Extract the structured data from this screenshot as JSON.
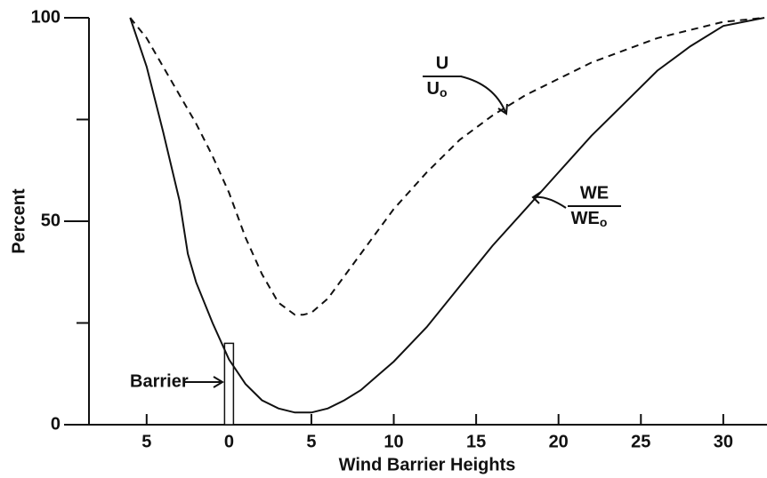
{
  "chart_data": {
    "type": "line",
    "xlabel": "Wind Barrier Heights",
    "ylabel": "Percent",
    "xlim": [
      -8.5,
      32.6
    ],
    "ylim": [
      0,
      100
    ],
    "xticks": [
      {
        "value": -5,
        "label": "5"
      },
      0,
      5,
      10,
      15,
      20,
      25,
      30
    ],
    "yticks": [
      0,
      50,
      100
    ],
    "yminor_ticks": [
      25,
      75
    ],
    "series": [
      {
        "label": {
          "numerator": "U",
          "denominator": "U",
          "subscript": "o"
        },
        "color": "#111",
        "dash": true,
        "x": [
          -6,
          -5,
          -4,
          -3,
          -2,
          -1,
          0,
          1,
          2,
          3,
          4,
          4.5,
          5,
          6,
          8,
          10,
          12,
          14,
          16,
          18,
          20,
          22,
          24,
          26,
          28,
          30,
          32.5
        ],
        "values": [
          100,
          95,
          88,
          81,
          74,
          66,
          57,
          46,
          37,
          30,
          27,
          27,
          27.5,
          31,
          42,
          53,
          62,
          70,
          76,
          81,
          85,
          89,
          92,
          95,
          97,
          99,
          100
        ]
      },
      {
        "label": {
          "numerator": "WE",
          "denominator": "WE",
          "subscript": "o"
        },
        "color": "#111",
        "dash": false,
        "x": [
          -6,
          -5,
          -4,
          -3,
          -2.5,
          -2,
          -1,
          0,
          1,
          2,
          3,
          4,
          5,
          6,
          7,
          8,
          9,
          10,
          12,
          14,
          16,
          18,
          20,
          22,
          24,
          26,
          28,
          30,
          32.5
        ],
        "values": [
          100,
          88,
          72,
          55,
          42,
          35,
          25,
          16,
          10,
          6,
          4,
          3,
          3,
          4,
          6,
          8.5,
          12,
          15.5,
          24,
          34,
          44,
          53,
          62,
          71,
          79,
          87,
          93,
          98,
          100
        ]
      }
    ],
    "barrier": {
      "label": "Barrier",
      "x": 0,
      "height": 20
    }
  }
}
